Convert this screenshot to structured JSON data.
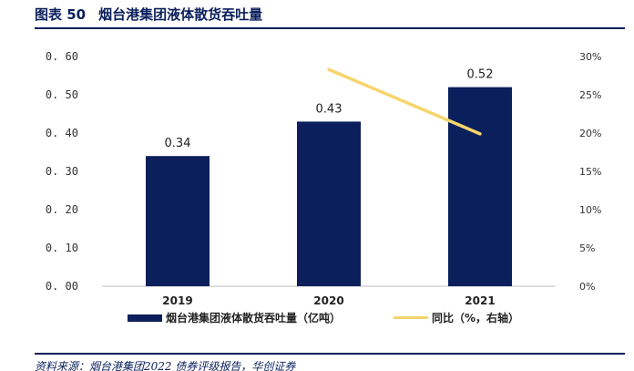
{
  "header": {
    "label": "图表 50",
    "title": "烟台港集团液体散货吞吐量"
  },
  "source": "资料来源：烟台港集团2022 债券评级报告，华创证券",
  "chart_data": {
    "type": "bar",
    "categories": [
      "2019",
      "2020",
      "2021"
    ],
    "series": [
      {
        "name": "烟台港集团液体散货吞吐量（亿吨）",
        "kind": "bar",
        "axis": "left",
        "values": [
          0.34,
          0.43,
          0.52
        ],
        "data_labels": [
          "0.34",
          "0.43",
          "0.52"
        ],
        "color": "#0b1f5c"
      },
      {
        "name": "同比（%，右轴）",
        "kind": "line",
        "axis": "right",
        "values": [
          null,
          28.3,
          19.9
        ],
        "color": "#f7d56b"
      }
    ],
    "y_left": {
      "min": 0,
      "max": 0.6,
      "ticks": [
        0.0,
        0.1,
        0.2,
        0.3,
        0.4,
        0.5,
        0.6
      ],
      "tick_labels": [
        "0. 00",
        "0. 10",
        "0. 20",
        "0. 30",
        "0. 40",
        "0. 50",
        "0. 60"
      ]
    },
    "y_right": {
      "min": 0,
      "max": 30,
      "ticks": [
        0,
        5,
        10,
        15,
        20,
        25,
        30
      ],
      "tick_labels": [
        "0%",
        "5%",
        "10%",
        "15%",
        "20%",
        "25%",
        "30%"
      ]
    },
    "grid": false,
    "legend_position": "bottom"
  }
}
